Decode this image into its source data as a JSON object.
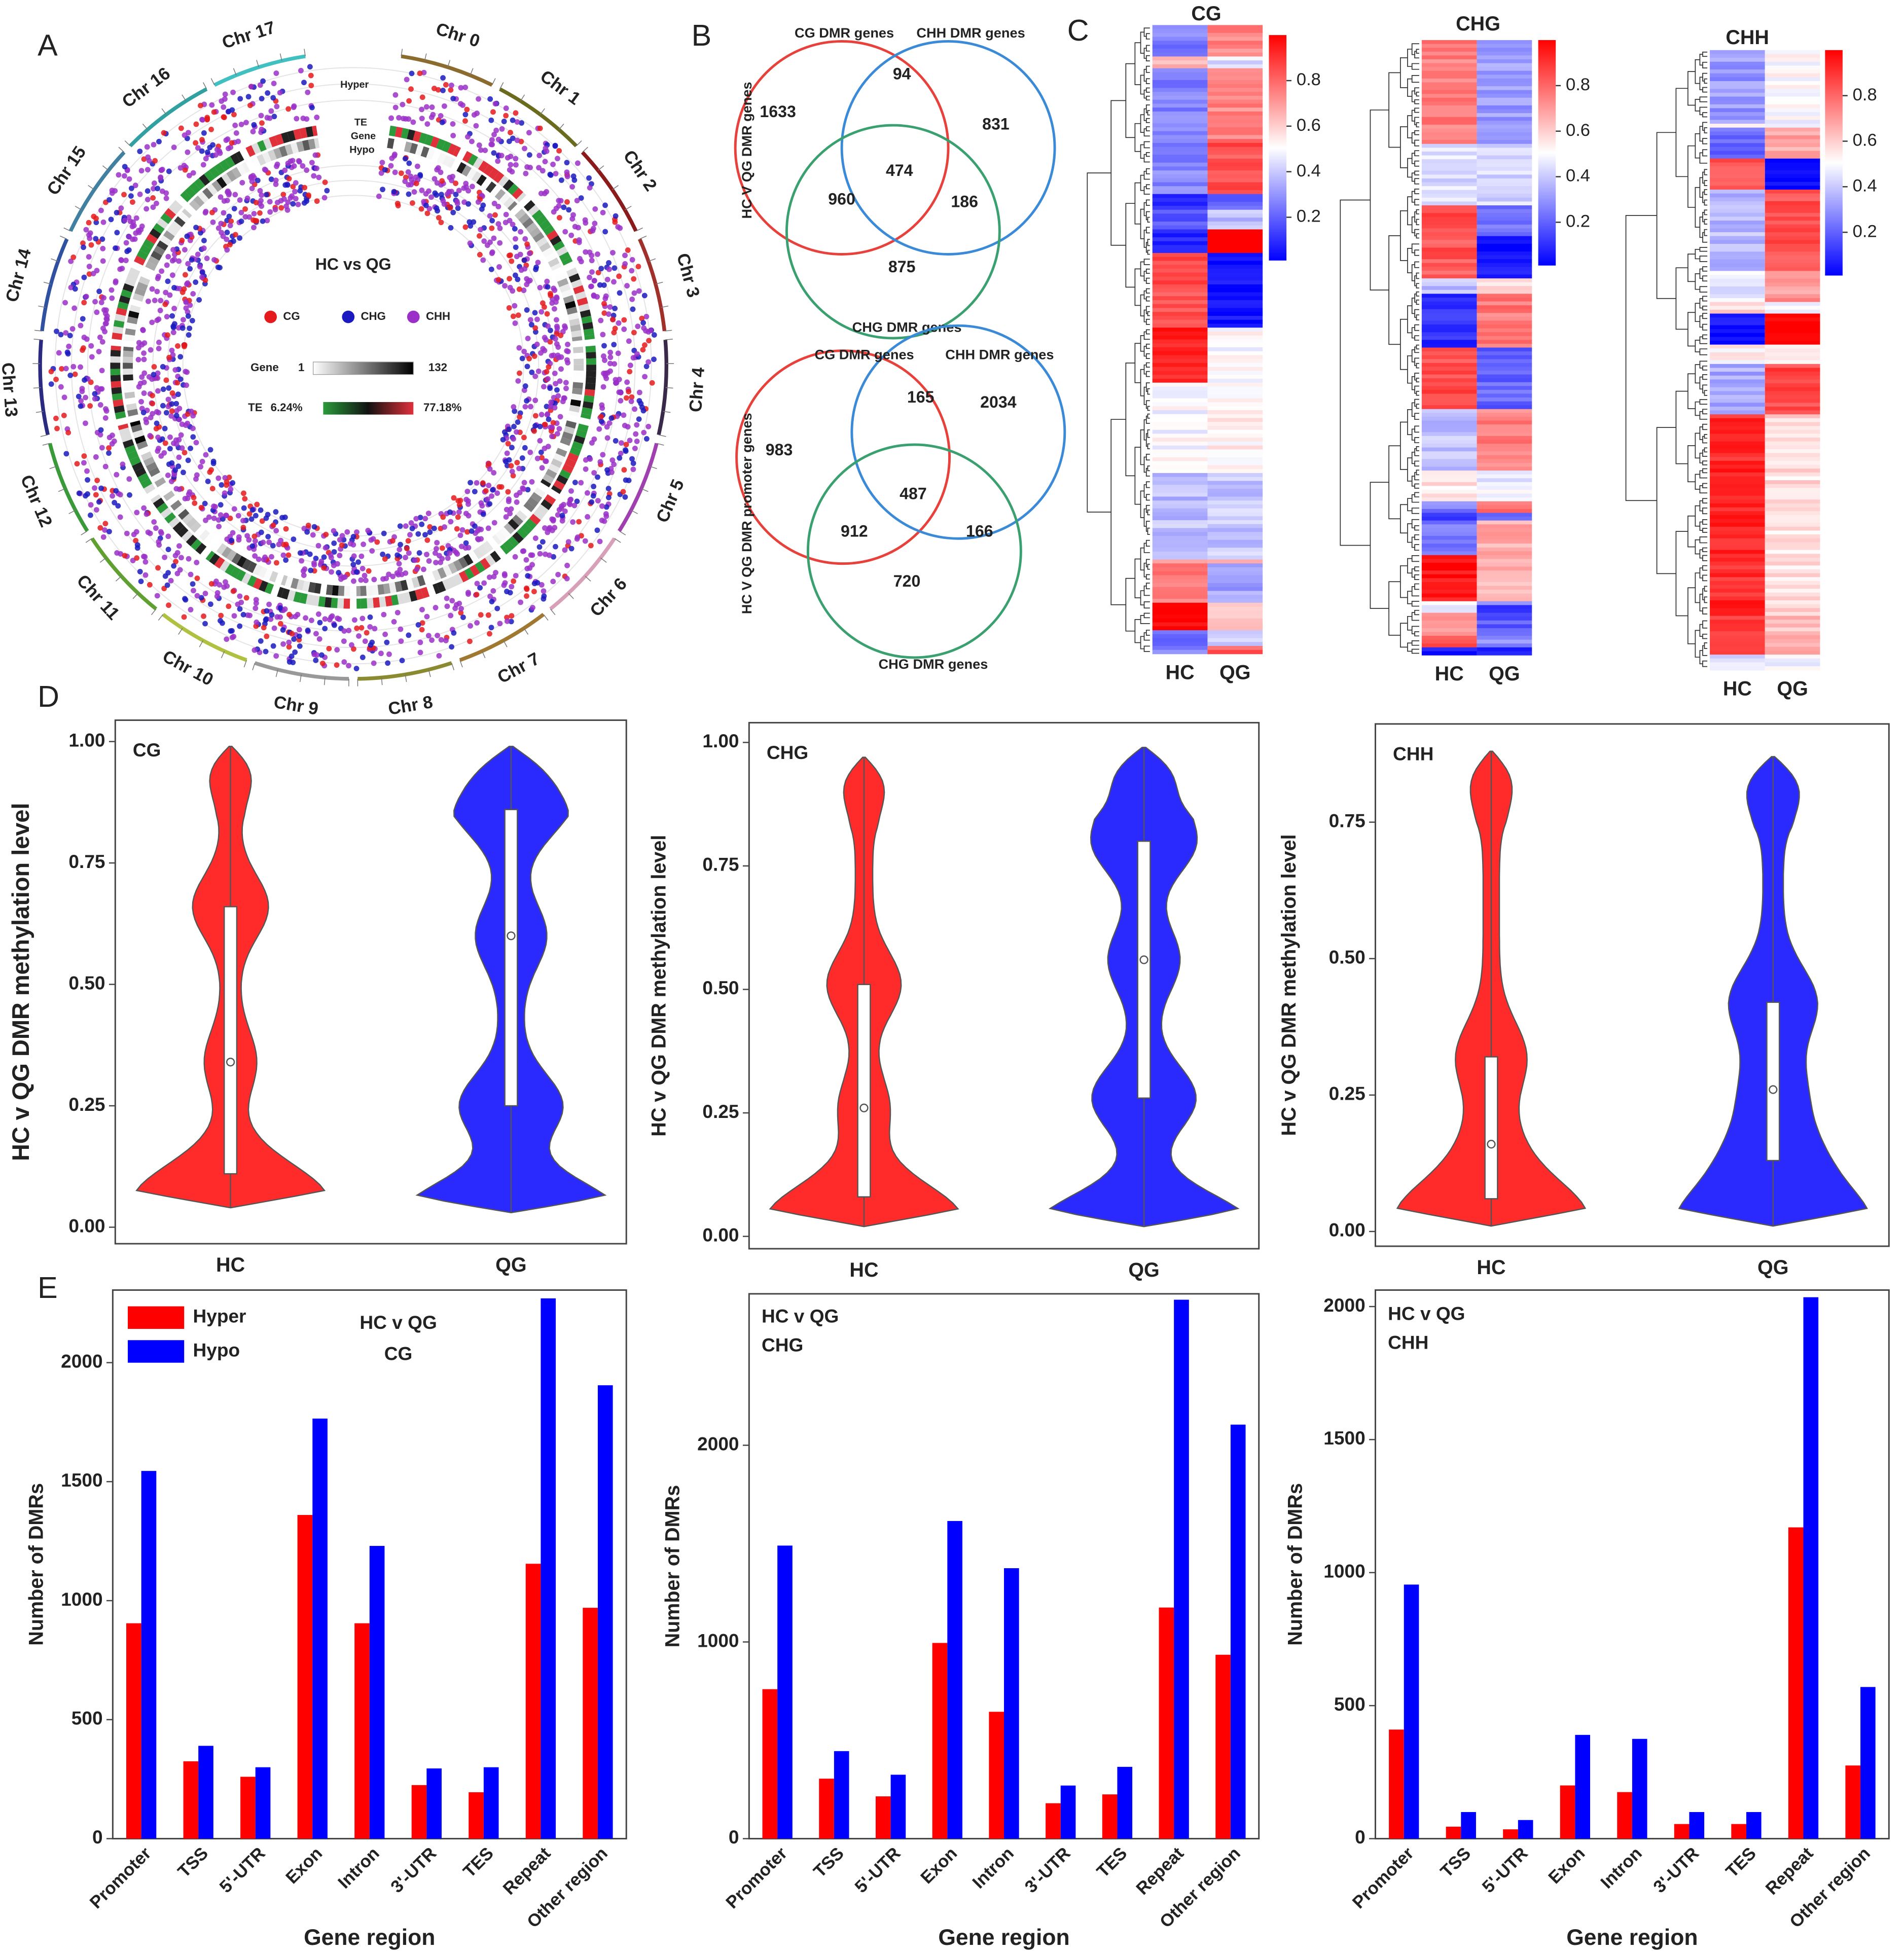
{
  "panel_labels": [
    "A",
    "B",
    "C",
    "D",
    "E"
  ],
  "circos": {
    "title": "HC vs QG",
    "chromosomes": [
      {
        "name": "Chr 0",
        "color": "#8b6b2e"
      },
      {
        "name": "Chr 1",
        "color": "#6b6b1e"
      },
      {
        "name": "Chr 2",
        "color": "#8b1a1a"
      },
      {
        "name": "Chr 3",
        "color": "#a0302a"
      },
      {
        "name": "Chr 4",
        "color": "#3a2a4a"
      },
      {
        "name": "Chr 5",
        "color": "#a040b0"
      },
      {
        "name": "Chr 6",
        "color": "#d8a0b8"
      },
      {
        "name": "Chr 7",
        "color": "#a07830"
      },
      {
        "name": "Chr 8",
        "color": "#8a8a30"
      },
      {
        "name": "Chr 9",
        "color": "#999999"
      },
      {
        "name": "Chr 10",
        "color": "#b0c040"
      },
      {
        "name": "Chr 11",
        "color": "#60a030"
      },
      {
        "name": "Chr 12",
        "color": "#3a9a3a"
      },
      {
        "name": "Chr 13",
        "color": "#2a2a80"
      },
      {
        "name": "Chr 14",
        "color": "#3050a0"
      },
      {
        "name": "Chr 15",
        "color": "#4080a0"
      },
      {
        "name": "Chr 16",
        "color": "#30a0a0"
      },
      {
        "name": "Chr 17",
        "color": "#40c0c0"
      }
    ],
    "track_labels": [
      "Hyper",
      "TE",
      "Gene",
      "Hypo"
    ],
    "dot_legend": [
      {
        "name": "CG",
        "color": "#e41a1c"
      },
      {
        "name": "CHG",
        "color": "#1a1ac0"
      },
      {
        "name": "CHH",
        "color": "#9a30c8"
      }
    ],
    "gene_legend": {
      "label": "Gene",
      "min": 1,
      "max": 132
    },
    "te_legend": {
      "label": "TE",
      "min": "6.24%",
      "max": "77.18%"
    }
  },
  "venn": [
    {
      "side_label": "HC V QG DMR genes",
      "sets": [
        {
          "name": "CG DMR genes",
          "color": "#e8403a"
        },
        {
          "name": "CHH DMR genes",
          "color": "#3a8ad8"
        },
        {
          "name": "CHG DMR genes",
          "color": "#3aa070"
        }
      ],
      "regions": [
        1633,
        94,
        831,
        960,
        474,
        186,
        875
      ]
    },
    {
      "side_label": "HC V QG DMR promoter genes",
      "sets": [
        {
          "name": "CG DMR genes",
          "color": "#e8403a"
        },
        {
          "name": "CHH DMR genes",
          "color": "#3a8ad8"
        },
        {
          "name": "CHG DMR genes",
          "color": "#3aa070"
        }
      ],
      "regions": [
        983,
        165,
        2034,
        912,
        487,
        166,
        720
      ]
    }
  ],
  "heatmaps": [
    {
      "title": "CG",
      "columns": [
        "HC",
        "QG"
      ],
      "clim": [
        0.01,
        1.0
      ],
      "colorbar_ticks": [
        0.2,
        0.4,
        0.6,
        0.8
      ]
    },
    {
      "title": "CHG",
      "columns": [
        "HC",
        "QG"
      ],
      "clim": [
        0.01,
        1.0
      ],
      "colorbar_ticks": [
        0.2,
        0.4,
        0.6,
        0.8
      ]
    },
    {
      "title": "CHH",
      "columns": [
        "HC",
        "QG"
      ],
      "clim": [
        0.01,
        1.0
      ],
      "colorbar_ticks": [
        0.2,
        0.4,
        0.6,
        0.8
      ]
    }
  ],
  "chart_data": [
    {
      "type": "violin",
      "label": "CG",
      "ylabel": "HC v QG DMR methylation level",
      "categories": [
        "HC",
        "QG"
      ],
      "colors": [
        "#ff2a2a",
        "#2a2aff"
      ],
      "min": [
        0.04,
        0.03
      ],
      "q1": [
        0.11,
        0.25
      ],
      "median": [
        0.34,
        0.6
      ],
      "q3": [
        0.66,
        0.86
      ],
      "max": [
        0.99,
        0.99
      ],
      "ylim": [
        -0.034,
        1.044
      ],
      "yticks": [
        {
          "value": 0,
          "label": "0.00"
        },
        {
          "value": 0.25,
          "label": "0.25"
        },
        {
          "value": 0.5,
          "label": "0.50"
        },
        {
          "value": 0.75,
          "label": "0.75"
        },
        {
          "value": 1,
          "label": "1.00"
        }
      ]
    },
    {
      "type": "violin",
      "label": "CHG",
      "ylabel": "HC v QG DMR methylation level",
      "categories": [
        "HC",
        "QG"
      ],
      "colors": [
        "#ff2a2a",
        "#2a2aff"
      ],
      "min": [
        0.02,
        0.02
      ],
      "q1": [
        0.08,
        0.28
      ],
      "median": [
        0.26,
        0.56
      ],
      "q3": [
        0.51,
        0.8
      ],
      "max": [
        0.97,
        0.99
      ],
      "ylim": [
        -0.025,
        1.04
      ],
      "yticks": [
        {
          "value": 0,
          "label": "0.00"
        },
        {
          "value": 0.25,
          "label": "0.25"
        },
        {
          "value": 0.5,
          "label": "0.50"
        },
        {
          "value": 0.75,
          "label": "0.75"
        },
        {
          "value": 1,
          "label": "1.00"
        }
      ]
    },
    {
      "type": "violin",
      "label": "CHH",
      "ylabel": "HC v QG DMR methylation level",
      "categories": [
        "HC",
        "QG"
      ],
      "colors": [
        "#ff2a2a",
        "#2a2aff"
      ],
      "min": [
        0.01,
        0.01
      ],
      "q1": [
        0.06,
        0.13
      ],
      "median": [
        0.16,
        0.26
      ],
      "q3": [
        0.32,
        0.42
      ],
      "max": [
        0.88,
        0.87
      ],
      "ylim": [
        -0.027,
        0.93
      ],
      "yticks": [
        {
          "value": 0,
          "label": "0.00"
        },
        {
          "value": 0.25,
          "label": "0.25"
        },
        {
          "value": 0.5,
          "label": "0.50"
        },
        {
          "value": 0.75,
          "label": "0.75"
        }
      ]
    },
    {
      "type": "bar",
      "annotation": [
        "HC v QG",
        "CG"
      ],
      "xlabel": "Gene region",
      "ylabel": "Number of DMRs",
      "legend": "upper left",
      "categories": [
        "Promoter",
        "TSS",
        "5'-UTR",
        "Exon",
        "Intron",
        "3'-UTR",
        "TES",
        "Repeat",
        "Other region"
      ],
      "series": [
        {
          "name": "Hyper",
          "color": "#ff0000",
          "values": [
            905,
            325,
            260,
            1360,
            905,
            225,
            195,
            1155,
            970
          ]
        },
        {
          "name": "Hypo",
          "color": "#0000ff",
          "values": [
            1545,
            390,
            300,
            1765,
            1230,
            295,
            300,
            2270,
            1905
          ]
        }
      ],
      "ylim": [
        0,
        2305
      ],
      "yticks": [
        0,
        500,
        1000,
        1500,
        2000
      ]
    },
    {
      "type": "bar",
      "annotation": [
        "HC v QG",
        "CHG"
      ],
      "xlabel": "Gene region",
      "ylabel": "Number of DMRs",
      "categories": [
        "Promoter",
        "TSS",
        "5'-UTR",
        "Exon",
        "Intron",
        "3'-UTR",
        "TES",
        "Repeat",
        "Other region"
      ],
      "series": [
        {
          "color": "#ff0000",
          "values": [
            760,
            305,
            215,
            995,
            645,
            180,
            225,
            1175,
            935
          ]
        },
        {
          "color": "#0000ff",
          "values": [
            1490,
            445,
            325,
            1615,
            1375,
            270,
            365,
            2740,
            2105
          ]
        }
      ],
      "ylim": [
        0,
        2770
      ],
      "yticks": [
        0,
        1000,
        2000
      ]
    },
    {
      "type": "bar",
      "annotation": [
        "HC v QG",
        "CHH"
      ],
      "xlabel": "Gene region",
      "ylabel": "Number of DMRs",
      "categories": [
        "Promoter",
        "TSS",
        "5'-UTR",
        "Exon",
        "Intron",
        "3'-UTR",
        "TES",
        "Repeat",
        "Other region"
      ],
      "series": [
        {
          "color": "#ff0000",
          "values": [
            410,
            45,
            35,
            200,
            175,
            55,
            55,
            1170,
            275
          ]
        },
        {
          "color": "#0000ff",
          "values": [
            955,
            100,
            70,
            390,
            375,
            100,
            100,
            2035,
            570
          ]
        }
      ],
      "ylim": [
        0,
        2062
      ],
      "yticks": [
        0,
        500,
        1000,
        1500,
        2000
      ]
    }
  ]
}
